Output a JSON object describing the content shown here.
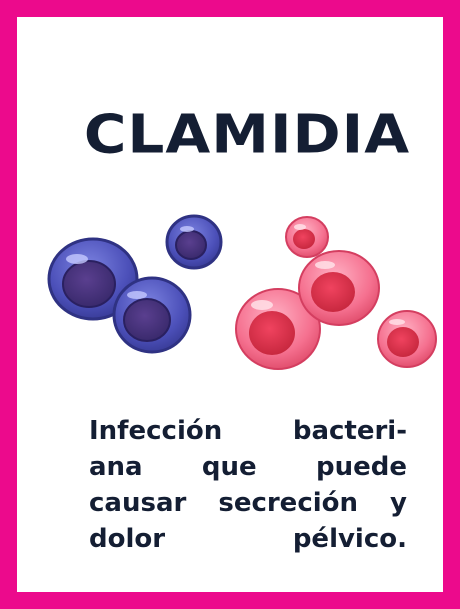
{
  "card": {
    "title": "CLAMIDIA",
    "description_lines": [
      "Infección bacteri-",
      "ana que puede",
      "causar secreción y",
      "dolor pélvico."
    ]
  },
  "colors": {
    "border": "#ec0a8c",
    "text": "#141e33",
    "blue_cell": "#4a4fb8",
    "pink_cell": "#f0587e"
  },
  "illustration": {
    "blue_group": "blue-cells",
    "pink_group": "pink-cells"
  }
}
